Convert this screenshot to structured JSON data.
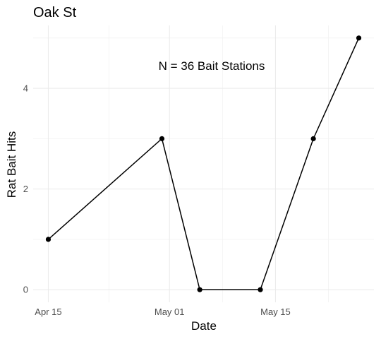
{
  "chart_data": {
    "type": "line",
    "title": "Oak St",
    "xlabel": "Date",
    "ylabel": "Rat Bait Hits",
    "annotation": "N = 36 Bait Stations",
    "x": [
      "2023-04-15",
      "2023-04-30",
      "2023-05-05",
      "2023-05-13",
      "2023-05-20",
      "2023-05-26"
    ],
    "values": [
      1,
      3,
      0,
      0,
      3,
      5
    ],
    "xlim": [
      "2023-04-13",
      "2023-05-28"
    ],
    "ylim": [
      -0.25,
      5.25
    ],
    "x_ticks": [
      {
        "date": "2023-04-15",
        "label": "Apr 15"
      },
      {
        "date": "2023-05-01",
        "label": "May 01"
      },
      {
        "date": "2023-05-15",
        "label": "May 15"
      }
    ],
    "x_minor_ticks": [
      "2023-04-23",
      "2023-05-08",
      "2023-05-22"
    ],
    "y_ticks": [
      0,
      2,
      4
    ],
    "y_minor_ticks": [
      1,
      3,
      5
    ],
    "grid": true
  }
}
